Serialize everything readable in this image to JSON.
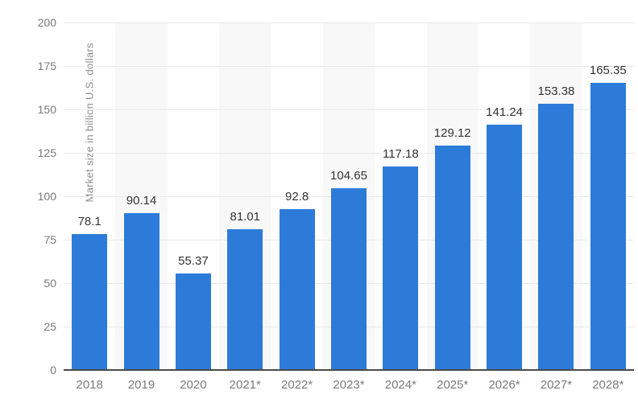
{
  "chart_data": {
    "type": "bar",
    "title": "",
    "categories": [
      "2018",
      "2019",
      "2020",
      "2021*",
      "2022*",
      "2023*",
      "2024*",
      "2025*",
      "2026*",
      "2027*",
      "2028*"
    ],
    "values": [
      78.1,
      90.14,
      55.37,
      81.01,
      92.8,
      104.65,
      117.18,
      129.12,
      141.24,
      153.38,
      165.35
    ],
    "value_labels": [
      "78.1",
      "90.14",
      "55.37",
      "81.01",
      "92.8",
      "104.65",
      "117.18",
      "129.12",
      "141.24",
      "153.38",
      "165.35"
    ],
    "xlabel": "",
    "ylabel": "Market size in billion U.S. dollars",
    "ylim": [
      0,
      200
    ],
    "ytick_interval": 25,
    "ytick_labels": [
      "0",
      "25",
      "50",
      "75",
      "100",
      "125",
      "150",
      "175",
      "200"
    ],
    "grid": true,
    "legend": null,
    "alternating_column_bands": true,
    "banded_categories": [
      "2019",
      "2021*",
      "2023*",
      "2025*",
      "2027*"
    ],
    "colors": {
      "bar": "#2d7bd9",
      "value_label": "#333333",
      "axis_text": "#7a7a7a",
      "y_axis_title_text": "#8c8c8c",
      "gridline": "#e9e9e9",
      "axis_line": "#4a4a4a",
      "column_band": "#f8f8f8",
      "background": "#ffffff"
    }
  }
}
